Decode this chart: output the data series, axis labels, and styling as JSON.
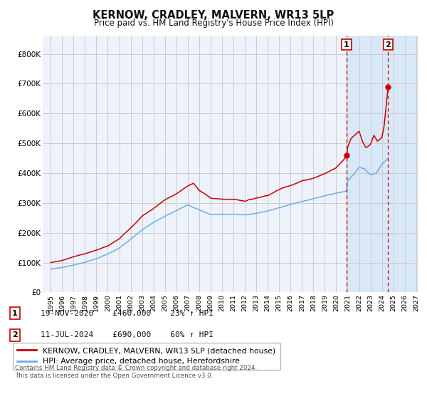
{
  "title": "KERNOW, CRADLEY, MALVERN, WR13 5LP",
  "subtitle": "Price paid vs. HM Land Registry's House Price Index (HPI)",
  "title_fontsize": 10.5,
  "subtitle_fontsize": 8.5,
  "ylim": [
    0,
    860000
  ],
  "yticks": [
    0,
    100000,
    200000,
    300000,
    400000,
    500000,
    600000,
    700000,
    800000
  ],
  "ytick_labels": [
    "£0",
    "£100K",
    "£200K",
    "£300K",
    "£400K",
    "£500K",
    "£600K",
    "£700K",
    "£800K"
  ],
  "red_color": "#cc0000",
  "blue_color": "#6aaee8",
  "grid_color": "#cccccc",
  "bg_color": "#ffffff",
  "plot_bg_color": "#eef2fb",
  "shaded_color": "#d8e8f8",
  "annotation1_date": "19-NOV-2020",
  "annotation1_price": "£460,000",
  "annotation1_hpi": "23% ↑ HPI",
  "annotation2_date": "11-JUL-2024",
  "annotation2_price": "£690,000",
  "annotation2_hpi": "60% ↑ HPI",
  "legend_label_red": "KERNOW, CRADLEY, MALVERN, WR13 5LP (detached house)",
  "legend_label_blue": "HPI: Average price, detached house, Herefordshire",
  "footer": "Contains HM Land Registry data © Crown copyright and database right 2024.\nThis data is licensed under the Open Government Licence v3.0.",
  "marker1_year": 2020.9,
  "marker2_year": 2024.54,
  "marker1_price": 460000,
  "marker2_price": 690000,
  "vline1_year": 2020.9,
  "vline2_year": 2024.54,
  "xlim_left": 1994.3,
  "xlim_right": 2027.2
}
